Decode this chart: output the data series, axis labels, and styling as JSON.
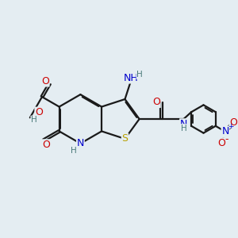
{
  "bg_color": "#e4edf2",
  "bond_color": "#1a1a1a",
  "bw": 1.6,
  "dbo": 0.05,
  "fs": 9,
  "fsm": 7.5,
  "colors": {
    "N": "#0000cc",
    "O": "#cc0000",
    "S": "#b8a000",
    "H": "#4a7a7a"
  }
}
